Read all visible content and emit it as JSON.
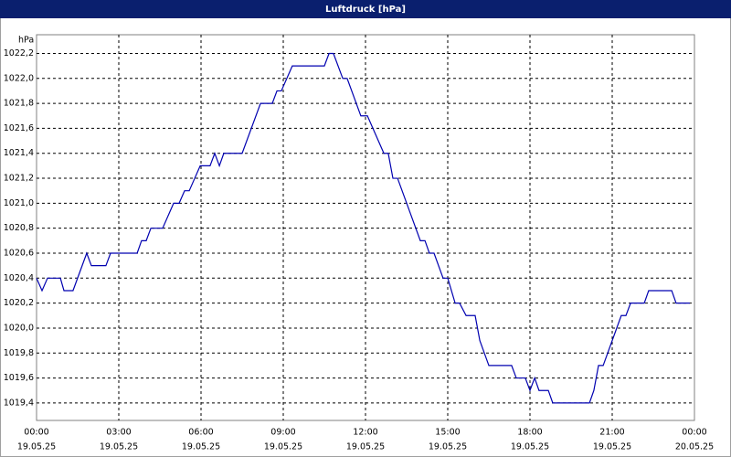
{
  "chart_data": {
    "type": "line",
    "title": "Luftdruck [hPa]",
    "ylabel": "hPa",
    "x": [
      0,
      0.2,
      0.4,
      0.87,
      1,
      1.33,
      1.83,
      2,
      2.53,
      2.7,
      3.67,
      3.83,
      4,
      4.17,
      4.6,
      5,
      5.2,
      5.4,
      5.57,
      5.77,
      5.97,
      6.33,
      6.5,
      6.67,
      6.83,
      7.5,
      8.17,
      8.6,
      8.77,
      8.93,
      9.33,
      10.5,
      10.67,
      10.83,
      11.17,
      11.33,
      11.83,
      12.07,
      12.67,
      12.83,
      13,
      13.17,
      14,
      14.17,
      14.33,
      14.5,
      14.83,
      15,
      15.27,
      15.43,
      15.67,
      16,
      16.17,
      16.5,
      17.33,
      17.5,
      17.83,
      18,
      18.17,
      18.33,
      18.67,
      18.83,
      20.17,
      20.33,
      20.5,
      20.67,
      21.33,
      21.5,
      21.67,
      22.17,
      22.33,
      23.17,
      23.33,
      23.83
    ],
    "series": [
      {
        "name": "Luftdruck",
        "color": "#0000b0",
        "values": [
          1020.4,
          1020.3,
          1020.4,
          1020.4,
          1020.3,
          1020.3,
          1020.6,
          1020.5,
          1020.5,
          1020.6,
          1020.6,
          1020.7,
          1020.7,
          1020.8,
          1020.8,
          1021.0,
          1021.0,
          1021.1,
          1021.1,
          1021.2,
          1021.3,
          1021.3,
          1021.4,
          1021.3,
          1021.4,
          1021.4,
          1021.8,
          1021.8,
          1021.9,
          1021.9,
          1022.1,
          1022.1,
          1022.2,
          1022.2,
          1022.0,
          1022.0,
          1021.7,
          1021.7,
          1021.4,
          1021.4,
          1021.2,
          1021.2,
          1020.7,
          1020.7,
          1020.6,
          1020.6,
          1020.4,
          1020.4,
          1020.2,
          1020.2,
          1020.1,
          1020.1,
          1019.9,
          1019.7,
          1019.7,
          1019.6,
          1019.6,
          1019.5,
          1019.6,
          1019.5,
          1019.5,
          1019.4,
          1019.4,
          1019.5,
          1019.7,
          1019.7,
          1020.1,
          1020.1,
          1020.2,
          1020.2,
          1020.3,
          1020.3,
          1020.2,
          1020.2
        ]
      }
    ],
    "xlim": [
      0,
      24
    ],
    "xticks": [
      {
        "value": 0,
        "label": "00:00",
        "date": "19.05.25"
      },
      {
        "value": 3,
        "label": "03:00",
        "date": "19.05.25"
      },
      {
        "value": 6,
        "label": "06:00",
        "date": "19.05.25"
      },
      {
        "value": 9,
        "label": "09:00",
        "date": "19.05.25"
      },
      {
        "value": 12,
        "label": "12:00",
        "date": "19.05.25"
      },
      {
        "value": 15,
        "label": "15:00",
        "date": "19.05.25"
      },
      {
        "value": 18,
        "label": "18:00",
        "date": "19.05.25"
      },
      {
        "value": 21,
        "label": "21:00",
        "date": "19.05.25"
      },
      {
        "value": 24,
        "label": "00:00",
        "date": "20.05.25"
      }
    ],
    "ylim": [
      1019.26,
      1022.35
    ],
    "yticks": [
      {
        "value": 1019.4,
        "label": "1019,4"
      },
      {
        "value": 1019.6,
        "label": "1019,6"
      },
      {
        "value": 1019.8,
        "label": "1019,8"
      },
      {
        "value": 1020.0,
        "label": "1020,0"
      },
      {
        "value": 1020.2,
        "label": "1020,2"
      },
      {
        "value": 1020.4,
        "label": "1020,4"
      },
      {
        "value": 1020.6,
        "label": "1020,6"
      },
      {
        "value": 1020.8,
        "label": "1020,8"
      },
      {
        "value": 1021.0,
        "label": "1021,0"
      },
      {
        "value": 1021.2,
        "label": "1021,2"
      },
      {
        "value": 1021.4,
        "label": "1021,4"
      },
      {
        "value": 1021.6,
        "label": "1021,6"
      },
      {
        "value": 1021.8,
        "label": "1021,8"
      },
      {
        "value": 1022.0,
        "label": "1022,0"
      },
      {
        "value": 1022.2,
        "label": "1022,2"
      }
    ],
    "grid": true
  }
}
